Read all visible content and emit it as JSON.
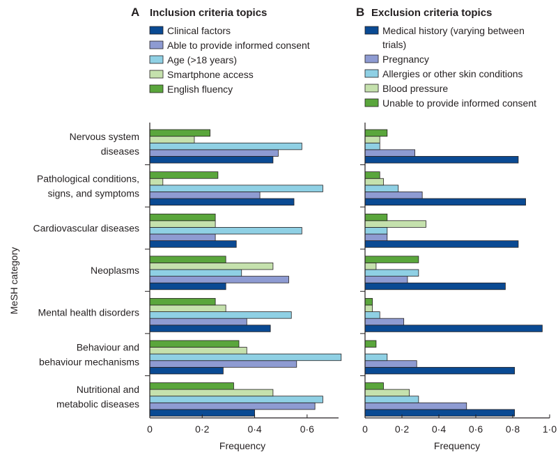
{
  "figure": {
    "ylabel": "MeSH category",
    "colors": {
      "dark_blue": "#0a4a93",
      "lavender": "#8e9bd2",
      "light_blue": "#8fd0e4",
      "light_green": "#c5e1ad",
      "green": "#5aa63c",
      "axis": "#231f20"
    }
  },
  "chart_data": [
    {
      "type": "bar",
      "orientation": "horizontal",
      "panel_letter": "A",
      "title": "Inclusion criteria topics",
      "xlabel": "Frequency",
      "ylabel": "MeSH category",
      "xlim": [
        0,
        0.72
      ],
      "xticks": [
        0,
        0.2,
        0.4,
        0.6
      ],
      "xtick_labels": [
        "0",
        "0·2",
        "0·4",
        "0·6"
      ],
      "grid": false,
      "legend_position": "top",
      "categories": [
        [
          "Nervous system",
          "diseases"
        ],
        [
          "Pathological conditions,",
          "signs, and symptoms"
        ],
        [
          "Cardiovascular diseases"
        ],
        [
          "Neoplasms"
        ],
        [
          "Mental health disorders"
        ],
        [
          "Behaviour and",
          "behaviour mechanisms"
        ],
        [
          "Nutritional and",
          "metabolic diseases"
        ]
      ],
      "series": [
        {
          "name": "Clinical factors",
          "color": "#0a4a93",
          "values": [
            0.47,
            0.55,
            0.33,
            0.29,
            0.46,
            0.28,
            0.4
          ]
        },
        {
          "name": "Able to provide informed consent",
          "color": "#8e9bd2",
          "values": [
            0.49,
            0.42,
            0.25,
            0.53,
            0.37,
            0.56,
            0.63
          ]
        },
        {
          "name": "Age (>18 years)",
          "color": "#8fd0e4",
          "values": [
            0.58,
            0.66,
            0.58,
            0.35,
            0.54,
            0.73,
            0.66
          ]
        },
        {
          "name": "Smartphone access",
          "color": "#c5e1ad",
          "values": [
            0.17,
            0.05,
            0.25,
            0.47,
            0.29,
            0.37,
            0.47
          ]
        },
        {
          "name": "English fluency",
          "color": "#5aa63c",
          "values": [
            0.23,
            0.26,
            0.25,
            0.29,
            0.25,
            0.34,
            0.32
          ]
        }
      ]
    },
    {
      "type": "bar",
      "orientation": "horizontal",
      "panel_letter": "B",
      "title": "Exclusion criteria topics",
      "xlabel": "Frequency",
      "ylabel": "",
      "xlim": [
        0,
        1.0
      ],
      "xticks": [
        0,
        0.2,
        0.4,
        0.6,
        0.8,
        1.0
      ],
      "xtick_labels": [
        "0",
        "0·2",
        "0·4",
        "0·6",
        "0·8",
        "1·0"
      ],
      "grid": false,
      "legend_position": "top",
      "categories": [
        [
          "Nervous system",
          "diseases"
        ],
        [
          "Pathological conditions,",
          "signs, and symptoms"
        ],
        [
          "Cardiovascular diseases"
        ],
        [
          "Neoplasms"
        ],
        [
          "Mental health disorders"
        ],
        [
          "Behaviour and",
          "behaviour mechanisms"
        ],
        [
          "Nutritional and",
          "metabolic diseases"
        ]
      ],
      "series": [
        {
          "name": [
            "Medical history (varying between",
            "trials)"
          ],
          "color": "#0a4a93",
          "values": [
            0.83,
            0.87,
            0.83,
            0.76,
            0.96,
            0.81,
            0.81
          ]
        },
        {
          "name": "Pregnancy",
          "color": "#8e9bd2",
          "values": [
            0.27,
            0.31,
            0.12,
            0.23,
            0.21,
            0.28,
            0.55
          ]
        },
        {
          "name": "Allergies or other skin conditions",
          "color": "#8fd0e4",
          "values": [
            0.08,
            0.18,
            0.12,
            0.29,
            0.08,
            0.12,
            0.29
          ]
        },
        {
          "name": "Blood pressure",
          "color": "#c5e1ad",
          "values": [
            0.08,
            0.1,
            0.33,
            0.06,
            0.04,
            0.0,
            0.24
          ]
        },
        {
          "name": "Unable to provide informed consent",
          "color": "#5aa63c",
          "values": [
            0.12,
            0.08,
            0.12,
            0.29,
            0.04,
            0.06,
            0.1
          ]
        }
      ]
    }
  ]
}
